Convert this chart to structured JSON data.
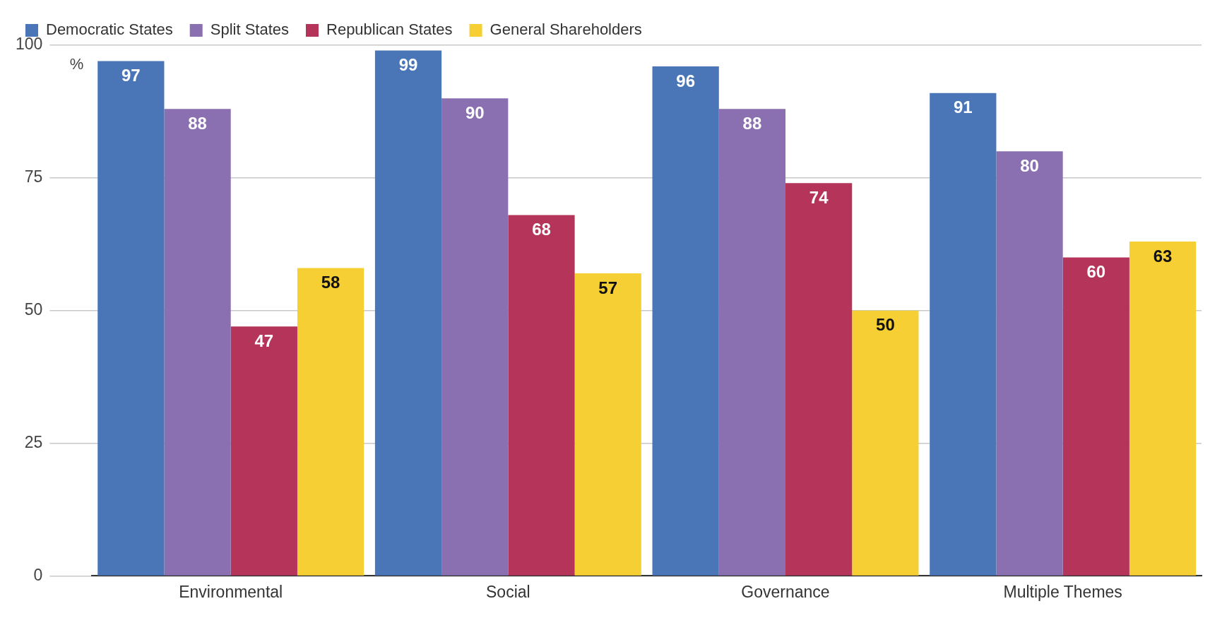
{
  "chart_data": {
    "type": "bar",
    "ylabel": "%",
    "categories": [
      "Environmental",
      "Social",
      "Governance",
      "Multiple Themes"
    ],
    "series": [
      {
        "name": "Democratic States",
        "color": "#4a76b8",
        "values": [
          97,
          99,
          96,
          91
        ]
      },
      {
        "name": "Split States",
        "color": "#8a70b0",
        "values": [
          88,
          90,
          88,
          80
        ]
      },
      {
        "name": "Republican States",
        "color": "#b5345a",
        "values": [
          47,
          68,
          74,
          60
        ]
      },
      {
        "name": "General Shareholders",
        "color": "#f5cf33",
        "values": [
          58,
          57,
          50,
          63
        ]
      }
    ],
    "ylim": [
      0,
      100
    ],
    "yticks": [
      0,
      25,
      50,
      75,
      100
    ],
    "grid": "y",
    "legend": "top left",
    "data_labels": true
  }
}
